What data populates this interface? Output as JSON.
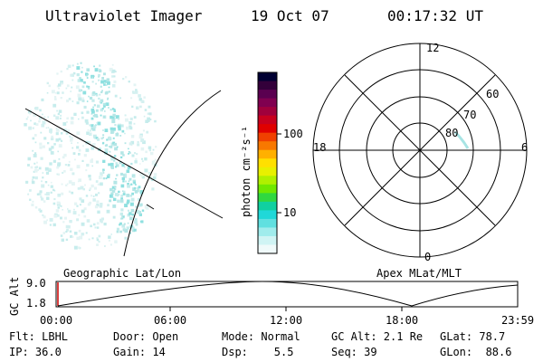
{
  "header": {
    "instrument": "Ultraviolet Imager",
    "date": "19 Oct 07",
    "time": "00:17:32 UT"
  },
  "colorbar": {
    "label": "photon cm⁻²s⁻¹",
    "ticks": [
      "100",
      "10"
    ],
    "colors": [
      "#000033",
      "#33003a",
      "#5a0050",
      "#800050",
      "#a0003c",
      "#c8001e",
      "#e00000",
      "#f04000",
      "#f87800",
      "#ffb000",
      "#ffe000",
      "#e8f000",
      "#b0f000",
      "#70e800",
      "#30d840",
      "#10d0a0",
      "#20d8d8",
      "#60e0e0",
      "#a0ecec",
      "#d0f4f4",
      "#f0fafa"
    ]
  },
  "map_left": {
    "label": "Geographic Lat/Lon",
    "aurora_color": "#8fe0e0"
  },
  "polar": {
    "label": "Apex MLat/MLT",
    "mlt_labels": {
      "top": "12",
      "left": "18",
      "right": "6",
      "bottom": "0"
    },
    "lat_labels": [
      "60",
      "70",
      "80"
    ]
  },
  "timeline": {
    "axis_label": "GC Alt",
    "y_ticks": [
      "9.0",
      "1.8"
    ],
    "x_ticks": [
      "00:00",
      "06:00",
      "12:00",
      "18:00",
      "23:59"
    ],
    "current_marker_color": "#cc0000"
  },
  "info": {
    "row1": [
      "Flt: LBHL",
      "Door: Open",
      "Mode: Normal",
      "GC Alt: 2.1 Re",
      "GLat: 78.7"
    ],
    "row2": [
      "IP: 36.0",
      "Gain: 14",
      "Dsp:    5.5",
      "Seq: 39",
      "GLon:  88.6"
    ]
  }
}
